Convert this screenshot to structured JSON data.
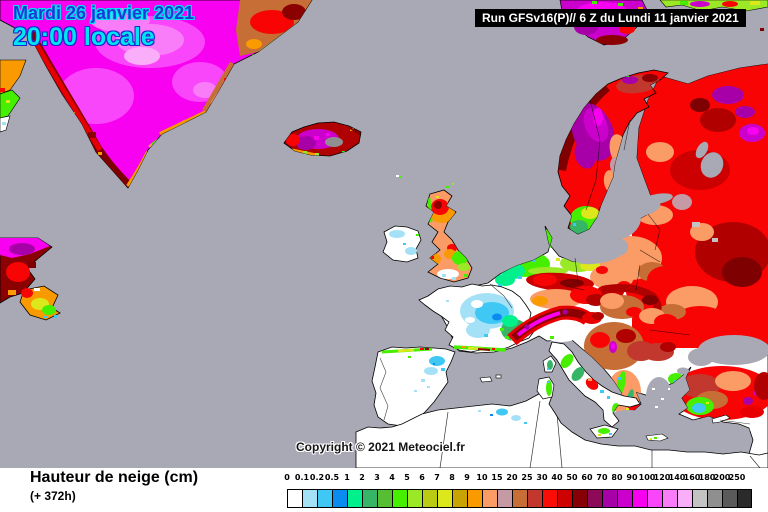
{
  "header": {
    "date_line": "Mardi 26 janvier 2021",
    "time_line": "20:00 locale",
    "run_info": "Run GFSv16(P)// 6 Z du Lundi 11 janvier 2021"
  },
  "map": {
    "copyright": "Copyright © 2021 Meteociel.fr"
  },
  "footer": {
    "title": "Hauteur de neige (cm)",
    "subtitle": "(+ 372h)"
  },
  "legend": {
    "unit": "cm",
    "ticks": [
      "0",
      "0.1",
      "0.2",
      "0.5",
      "1",
      "2",
      "3",
      "4",
      "5",
      "6",
      "7",
      "8",
      "9",
      "10",
      "15",
      "20",
      "25",
      "30",
      "40",
      "50",
      "60",
      "70",
      "80",
      "90",
      "100",
      "120",
      "140",
      "160",
      "180",
      "200",
      "250"
    ],
    "colors": [
      "#FFFFFF",
      "#A5E1F6",
      "#3FC8F4",
      "#0A8BF0",
      "#00F08C",
      "#37B566",
      "#55BE33",
      "#46EE00",
      "#9BE827",
      "#B9CB13",
      "#DCE81B",
      "#C9A303",
      "#F99B00",
      "#FB9B66",
      "#C59AA5",
      "#C76D36",
      "#C2372E",
      "#FB0D07",
      "#CE0000",
      "#870005",
      "#8C0A58",
      "#A800A8",
      "#CC00CC",
      "#F800F0",
      "#FA46FA",
      "#F97DF9",
      "#FAAEFA",
      "#C3C3C3",
      "#8F8F8F",
      "#5A5A5A",
      "#2B2B2B"
    ]
  },
  "colors": {
    "sea": "#A9A9B5",
    "date_text": "#2436D6",
    "date_outline": "#00E4F4",
    "time_text": "#00E4F4",
    "time_outline": "#1A2ACC",
    "run_box_bg": "#000000",
    "run_box_text": "#FFFFFF"
  }
}
